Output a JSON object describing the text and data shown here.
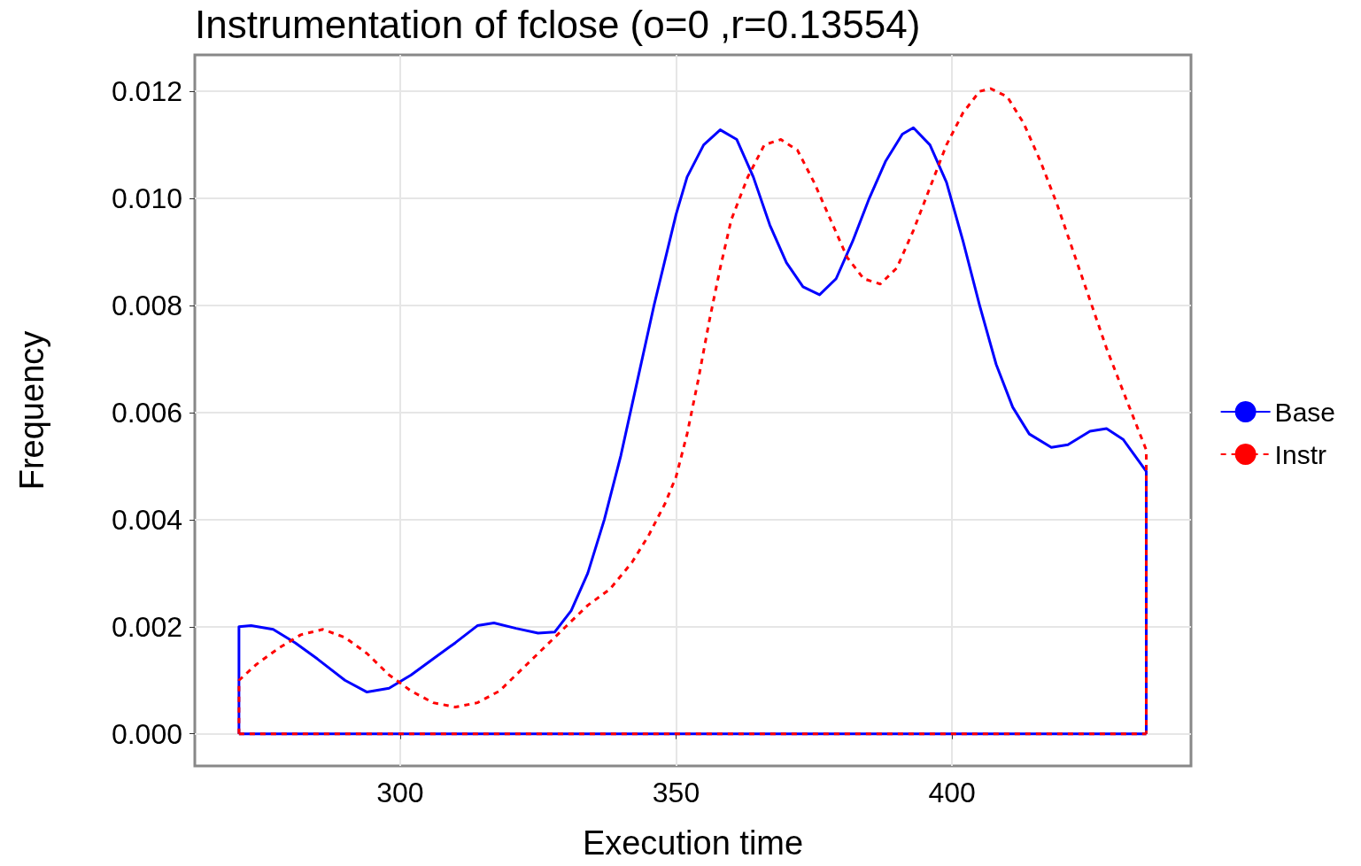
{
  "chart_data": {
    "type": "line",
    "title": "Instrumentation of fclose (o=0 ,r=0.13554)",
    "xlabel": "Execution time",
    "ylabel": "Frequency",
    "xlim": [
      262.8,
      443.3
    ],
    "xticks": [
      300,
      350,
      400
    ],
    "ylim": [
      -0.0006,
      0.01268
    ],
    "yticks": [
      {
        "value": 0,
        "label": "0.000"
      },
      {
        "value": 0.002,
        "label": "0.002"
      },
      {
        "value": 0.004,
        "label": "0.004"
      },
      {
        "value": 0.006,
        "label": "0.006"
      },
      {
        "value": 0.008,
        "label": "0.008"
      },
      {
        "value": 0.01,
        "label": "0.010"
      },
      {
        "value": 0.012,
        "label": "0.012"
      }
    ],
    "grid": true,
    "legend": "right",
    "marker": "none",
    "series": [
      {
        "name": "Base",
        "color": "#0000ff",
        "line_style": "solid",
        "x": [
          270.8,
          270.8,
          273,
          277,
          281,
          285,
          290,
          294,
          298,
          302,
          306,
          310,
          314,
          317,
          321,
          325,
          328,
          331,
          334,
          337,
          340,
          343,
          346,
          350,
          352,
          355,
          358,
          361,
          364,
          367,
          370,
          373,
          376,
          379,
          382,
          385,
          388,
          391,
          393,
          396,
          399,
          402,
          405,
          408,
          411,
          414,
          418,
          421,
          425,
          428,
          431,
          435.2,
          435.2
        ],
        "values": [
          0,
          0.002,
          0.00202,
          0.00195,
          0.0017,
          0.0014,
          0.001,
          0.00078,
          0.00085,
          0.0011,
          0.0014,
          0.0017,
          0.00202,
          0.00207,
          0.00197,
          0.00188,
          0.0019,
          0.0023,
          0.003,
          0.004,
          0.0052,
          0.0066,
          0.008,
          0.0097,
          0.0104,
          0.011,
          0.01128,
          0.0111,
          0.0104,
          0.0095,
          0.0088,
          0.00835,
          0.0082,
          0.0085,
          0.0092,
          0.01,
          0.0107,
          0.0112,
          0.01132,
          0.011,
          0.0103,
          0.0092,
          0.008,
          0.0069,
          0.0061,
          0.0056,
          0.00535,
          0.0054,
          0.00565,
          0.0057,
          0.0055,
          0.0049,
          0
        ]
      },
      {
        "name": "Instr",
        "color": "#ff0000",
        "line_style": "dashed",
        "x": [
          270.8,
          270.8,
          274,
          278,
          282,
          286,
          290,
          294,
          298,
          302,
          306,
          310,
          314,
          318,
          322,
          326,
          330,
          334,
          338,
          342,
          345,
          348,
          350,
          352,
          354,
          356,
          358,
          360,
          363,
          366,
          369,
          372,
          375,
          378,
          381,
          384,
          387,
          390,
          393,
          396,
          399,
          402,
          405,
          407,
          410,
          413,
          416,
          419,
          422,
          425,
          428,
          431,
          435.2,
          435.2
        ],
        "values": [
          0,
          0.001,
          0.0013,
          0.0016,
          0.00185,
          0.00195,
          0.0018,
          0.0015,
          0.0011,
          0.0008,
          0.00058,
          0.0005,
          0.00058,
          0.0008,
          0.0012,
          0.0016,
          0.002,
          0.0024,
          0.0027,
          0.0032,
          0.0037,
          0.0043,
          0.0048,
          0.0056,
          0.0066,
          0.0077,
          0.0087,
          0.0096,
          0.0104,
          0.011,
          0.0111,
          0.0109,
          0.0103,
          0.0096,
          0.0089,
          0.0085,
          0.0084,
          0.0087,
          0.0094,
          0.0102,
          0.011,
          0.0116,
          0.012,
          0.01205,
          0.0119,
          0.0114,
          0.0107,
          0.0099,
          0.009,
          0.0081,
          0.0072,
          0.0064,
          0.0053,
          0
        ]
      },
      {
        "color": "#0000ff",
        "line_style": "solid",
        "x": [
          270.8,
          435.2
        ],
        "values": [
          0,
          0
        ]
      },
      {
        "color": "#ff0000",
        "line_style": "dashed",
        "x": [
          270.8,
          435.2
        ],
        "values": [
          0,
          0
        ]
      }
    ]
  }
}
